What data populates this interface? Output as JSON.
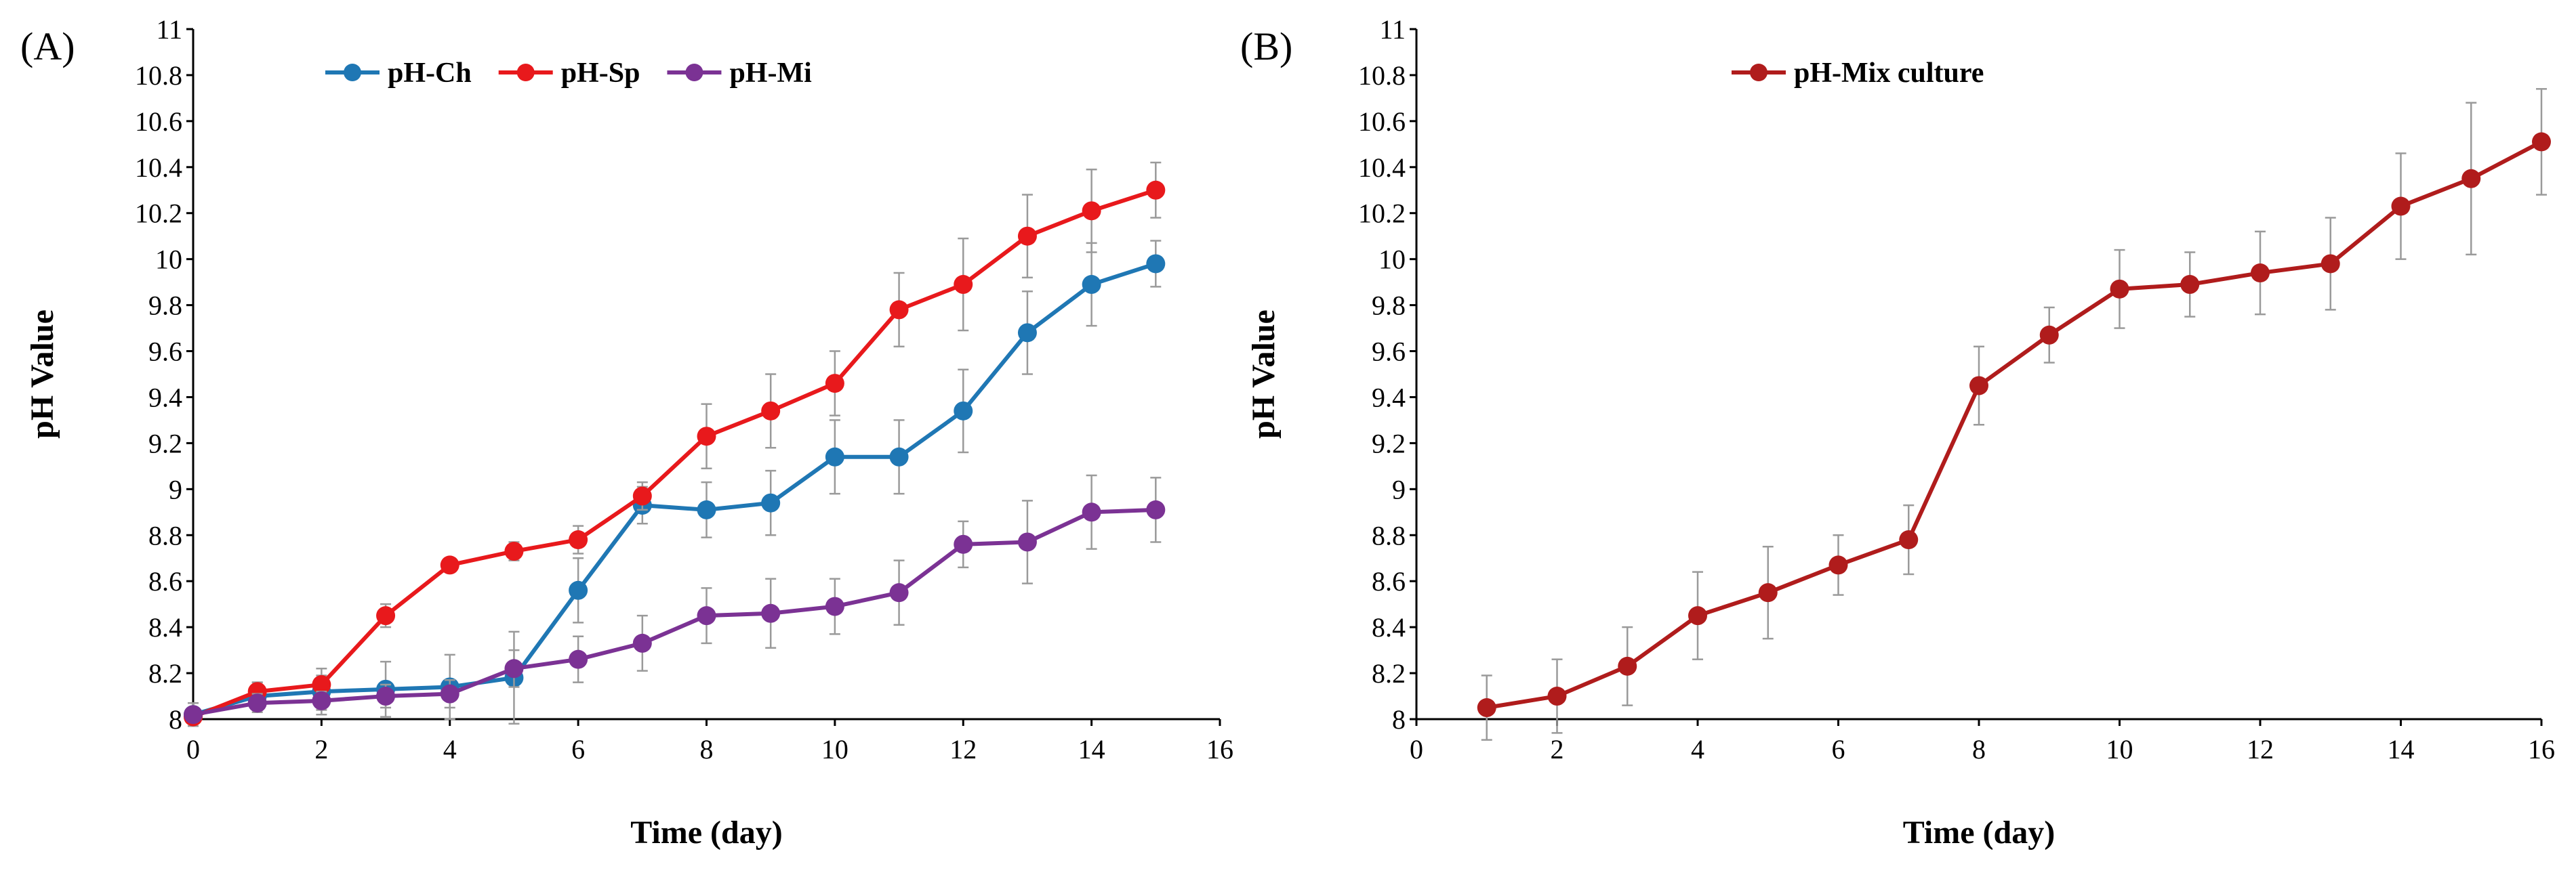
{
  "chart_data": [
    {
      "type": "line",
      "panel_label": "(A)",
      "xlabel": "Time (day)",
      "ylabel": "pH Value",
      "xlim": [
        0,
        16
      ],
      "ylim": [
        8,
        11
      ],
      "x_ticks": [
        "0",
        "2",
        "4",
        "6",
        "8",
        "10",
        "12",
        "14",
        "16"
      ],
      "y_ticks": [
        "8",
        "8.2",
        "8.4",
        "8.6",
        "8.8",
        "9",
        "9.2",
        "9.4",
        "9.6",
        "9.8",
        "10",
        "10.2",
        "10.4",
        "10.6",
        "10.8",
        "11"
      ],
      "legend_position": "top-center",
      "series": [
        {
          "name": "pH-Ch",
          "color": "#1f77b4",
          "x": [
            0,
            1,
            2,
            3,
            4,
            5,
            6,
            7,
            8,
            9,
            10,
            11,
            12,
            13,
            14,
            15
          ],
          "y": [
            8.02,
            8.1,
            8.12,
            8.13,
            8.14,
            8.18,
            8.56,
            8.93,
            8.91,
            8.94,
            9.14,
            9.14,
            9.34,
            9.68,
            9.89,
            9.98
          ],
          "err": [
            0.05,
            0.06,
            0.1,
            0.12,
            0.14,
            0.2,
            0.14,
            0.08,
            0.12,
            0.14,
            0.16,
            0.16,
            0.18,
            0.18,
            0.18,
            0.1
          ]
        },
        {
          "name": "pH-Sp",
          "color": "#e8191c",
          "x": [
            0,
            1,
            2,
            3,
            4,
            5,
            6,
            7,
            8,
            9,
            10,
            11,
            12,
            13,
            14,
            15
          ],
          "y": [
            8.01,
            8.12,
            8.15,
            8.45,
            8.67,
            8.73,
            8.78,
            8.97,
            9.23,
            9.34,
            9.46,
            9.78,
            9.89,
            10.1,
            10.21,
            10.3
          ],
          "err": [
            0.03,
            0.04,
            0.04,
            0.05,
            0.03,
            0.04,
            0.06,
            0.06,
            0.14,
            0.16,
            0.14,
            0.16,
            0.2,
            0.18,
            0.18,
            0.12
          ]
        },
        {
          "name": "pH-Mi",
          "color": "#7b3294",
          "x": [
            0,
            1,
            2,
            3,
            4,
            5,
            6,
            7,
            8,
            9,
            10,
            11,
            12,
            13,
            14,
            15
          ],
          "y": [
            8.02,
            8.07,
            8.08,
            8.1,
            8.11,
            8.22,
            8.26,
            8.33,
            8.45,
            8.46,
            8.49,
            8.55,
            8.76,
            8.77,
            8.9,
            8.91
          ],
          "err": [
            0.03,
            0.04,
            0.04,
            0.05,
            0.06,
            0.08,
            0.1,
            0.12,
            0.12,
            0.15,
            0.12,
            0.14,
            0.1,
            0.18,
            0.16,
            0.14
          ]
        }
      ]
    },
    {
      "type": "line",
      "panel_label": "(B)",
      "xlabel": "Time (day)",
      "ylabel": "pH Value",
      "xlim": [
        0,
        16
      ],
      "ylim": [
        8,
        11
      ],
      "x_ticks": [
        "0",
        "2",
        "4",
        "6",
        "8",
        "10",
        "12",
        "14",
        "16"
      ],
      "y_ticks": [
        "8",
        "8.2",
        "8.4",
        "8.6",
        "8.8",
        "9",
        "9.2",
        "9.4",
        "9.6",
        "9.8",
        "10",
        "10.2",
        "10.4",
        "10.6",
        "10.8",
        "11"
      ],
      "legend_position": "top-center",
      "series": [
        {
          "name": "pH-Mix culture",
          "color": "#b01c1c",
          "x": [
            1,
            2,
            3,
            4,
            5,
            6,
            7,
            8,
            9,
            10,
            11,
            12,
            13,
            14,
            15,
            16
          ],
          "y": [
            8.05,
            8.1,
            8.23,
            8.45,
            8.55,
            8.67,
            8.78,
            9.45,
            9.67,
            9.87,
            9.89,
            9.94,
            9.98,
            10.23,
            10.35,
            10.51
          ],
          "err": [
            0.14,
            0.16,
            0.17,
            0.19,
            0.2,
            0.13,
            0.15,
            0.17,
            0.12,
            0.17,
            0.14,
            0.18,
            0.2,
            0.23,
            0.33,
            0.23
          ]
        }
      ]
    }
  ]
}
